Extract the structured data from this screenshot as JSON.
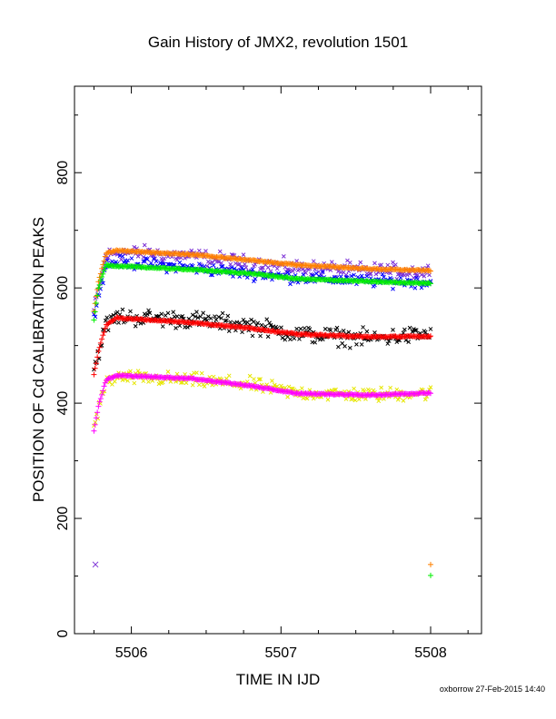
{
  "chart_data": {
    "type": "scatter",
    "title": "Gain History of JMX2, revolution 1501",
    "xlabel": "TIME IN IJD",
    "ylabel": "POSITION OF Cd CALIBRATION PEAKS",
    "xlim": [
      5505.62,
      5508.34
    ],
    "ylim": [
      0,
      950
    ],
    "x_ticks": [
      5506,
      5507,
      5508
    ],
    "y_ticks": [
      0,
      200,
      400,
      600,
      800
    ],
    "grid": false,
    "legend": "none",
    "series": [
      {
        "marker": "x",
        "color": "#7b2fd6",
        "base": [
          [
            5505.75,
            560
          ],
          [
            5505.83,
            655
          ],
          [
            5505.9,
            662
          ],
          [
            5506.4,
            655
          ],
          [
            5506.8,
            642
          ],
          [
            5507.1,
            635
          ],
          [
            5507.6,
            630
          ],
          [
            5508.0,
            628
          ]
        ],
        "scatter": 20
      },
      {
        "marker": "x",
        "color": "#0000ff",
        "base": [
          [
            5505.75,
            555
          ],
          [
            5505.83,
            640
          ],
          [
            5505.9,
            645
          ],
          [
            5506.4,
            635
          ],
          [
            5506.8,
            625
          ],
          [
            5507.1,
            618
          ],
          [
            5507.6,
            612
          ],
          [
            5508.0,
            610
          ]
        ],
        "scatter": 15
      },
      {
        "marker": "x",
        "color": "#000000",
        "base": [
          [
            5505.75,
            460
          ],
          [
            5505.83,
            535
          ],
          [
            5505.9,
            550
          ],
          [
            5506.4,
            545
          ],
          [
            5506.8,
            535
          ],
          [
            5507.1,
            520
          ],
          [
            5507.6,
            512
          ],
          [
            5508.0,
            520
          ]
        ],
        "scatter": 22
      },
      {
        "marker": "x",
        "color": "#e6e600",
        "base": [
          [
            5505.75,
            360
          ],
          [
            5505.83,
            435
          ],
          [
            5505.9,
            445
          ],
          [
            5506.4,
            440
          ],
          [
            5506.8,
            432
          ],
          [
            5507.1,
            418
          ],
          [
            5507.6,
            414
          ],
          [
            5508.0,
            418
          ]
        ],
        "scatter": 18
      },
      {
        "marker": "+",
        "color": "#ff8000",
        "base": [
          [
            5505.75,
            560
          ],
          [
            5505.78,
            610
          ],
          [
            5505.83,
            660
          ],
          [
            5505.9,
            665
          ],
          [
            5506.4,
            658
          ],
          [
            5506.8,
            648
          ],
          [
            5507.1,
            640
          ],
          [
            5507.6,
            633
          ],
          [
            5508.0,
            630
          ]
        ],
        "scatter": 2
      },
      {
        "marker": "+",
        "color": "#00ee00",
        "base": [
          [
            5505.75,
            545
          ],
          [
            5505.78,
            600
          ],
          [
            5505.83,
            640
          ],
          [
            5505.9,
            638
          ],
          [
            5506.4,
            632
          ],
          [
            5506.8,
            625
          ],
          [
            5507.1,
            616
          ],
          [
            5507.6,
            611
          ],
          [
            5508.0,
            608
          ]
        ],
        "scatter": 2
      },
      {
        "marker": "+",
        "color": "#ff0000",
        "base": [
          [
            5505.75,
            450
          ],
          [
            5505.78,
            490
          ],
          [
            5505.83,
            535
          ],
          [
            5505.9,
            548
          ],
          [
            5506.4,
            540
          ],
          [
            5506.8,
            530
          ],
          [
            5507.1,
            520
          ],
          [
            5507.6,
            515
          ],
          [
            5508.0,
            516
          ]
        ],
        "scatter": 2
      },
      {
        "marker": "+",
        "color": "#ff00ff",
        "base": [
          [
            5505.75,
            352
          ],
          [
            5505.78,
            395
          ],
          [
            5505.83,
            440
          ],
          [
            5505.9,
            448
          ],
          [
            5506.4,
            443
          ],
          [
            5506.8,
            430
          ],
          [
            5507.1,
            417
          ],
          [
            5507.6,
            414
          ],
          [
            5508.0,
            418
          ]
        ],
        "scatter": 2
      }
    ],
    "outliers": [
      {
        "x": 5505.76,
        "y": 120,
        "marker": "x",
        "color": "#7b2fd6"
      },
      {
        "x": 5508.0,
        "y": 120,
        "marker": "+",
        "color": "#ff8000"
      },
      {
        "x": 5508.0,
        "y": 101,
        "marker": "+",
        "color": "#00ee00"
      }
    ]
  },
  "footer": "oxborrow 27-Feb-2015 14:40"
}
